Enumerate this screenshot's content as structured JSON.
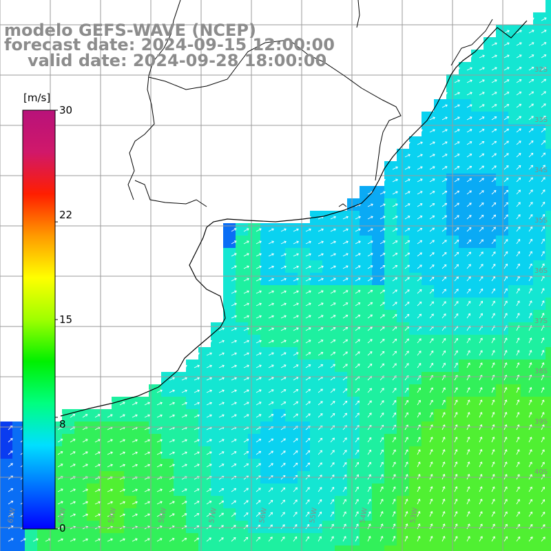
{
  "header": {
    "line1": "modelo GEFS-WAVE (NCEP)",
    "line2": "forecast date: 2024-09-15 12:00:00",
    "line3": "valid date: 2024-09-28 18:00:00"
  },
  "colorbar": {
    "unit": "[m/s]",
    "min": 0,
    "max": 30,
    "ticks": [
      {
        "value": 30,
        "label": "30"
      },
      {
        "value": 22,
        "label": "22"
      },
      {
        "value": 15,
        "label": "15"
      },
      {
        "value": 8,
        "label": "8"
      },
      {
        "value": 0,
        "label": "0"
      }
    ],
    "colors": [
      "#0000ff",
      "#0070ff",
      "#00dfff",
      "#00ff80",
      "#00f000",
      "#9fff00",
      "#ffff00",
      "#ff9a00",
      "#ff1e00",
      "#d0186a",
      "#b8127a"
    ]
  },
  "map": {
    "ocean_field_colors": [
      "#0a3cf0",
      "#0a6ef5",
      "#0aaaf5",
      "#0ad2f0",
      "#14e6d2",
      "#1ef0a0",
      "#32f05a",
      "#50f032"
    ],
    "land_color": "#ffffff",
    "grid_color": "#9a9a9a",
    "coastline_color": "#000000",
    "arrow_color": "#ffffff",
    "latitude_labels": [
      "32S",
      "33S",
      "34S",
      "35S",
      "36S",
      "37S",
      "38S",
      "39S",
      "40S"
    ],
    "longitude_labels": [
      "61W",
      "60W",
      "59W",
      "58W",
      "57W",
      "56W",
      "55W",
      "54W",
      "53W"
    ]
  }
}
